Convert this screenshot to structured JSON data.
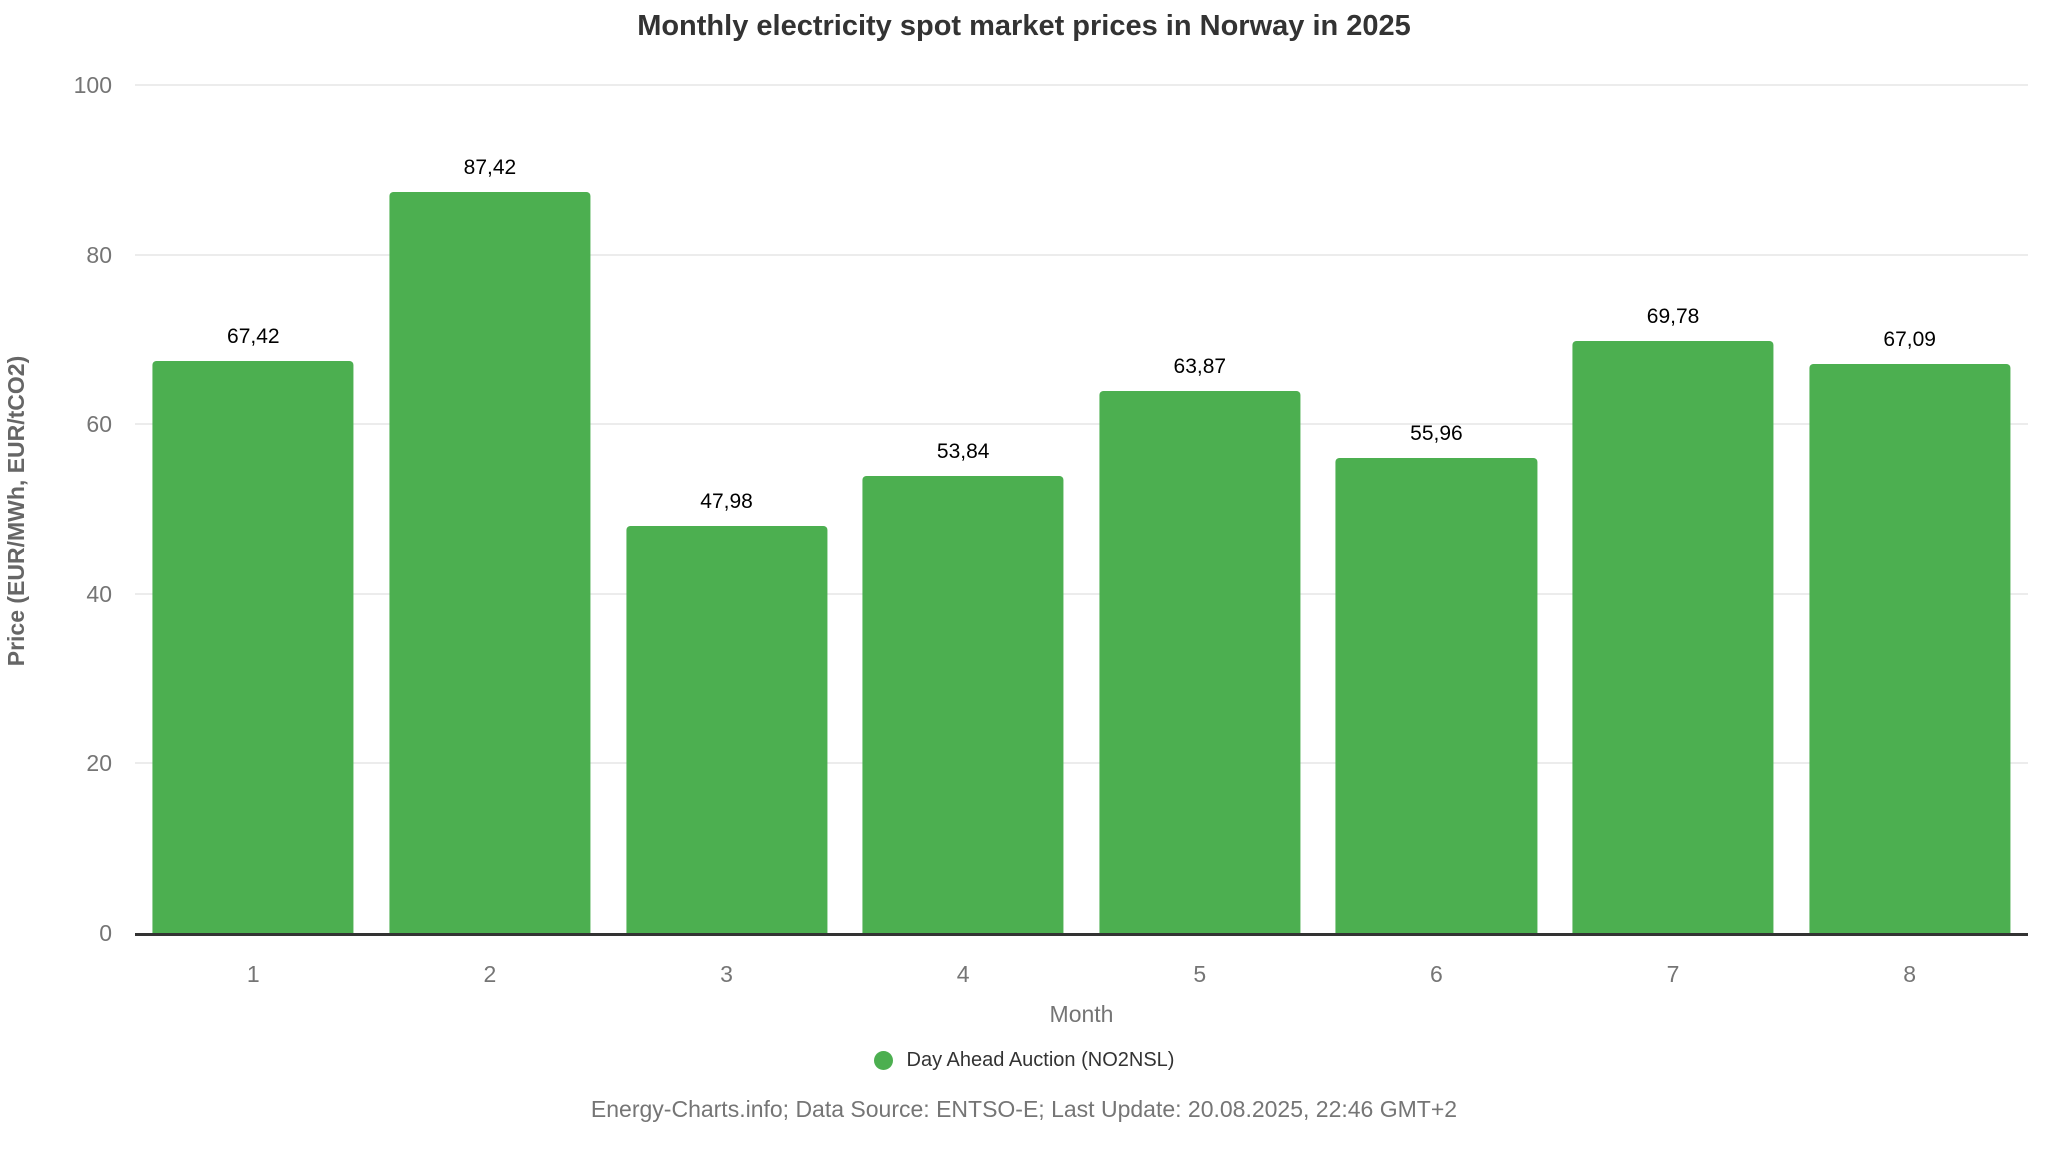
{
  "title": "Monthly electricity spot market prices in Norway in 2025",
  "chart_data": {
    "type": "bar",
    "title": "Monthly electricity spot market prices in Norway in 2025",
    "categories": [
      "1",
      "2",
      "3",
      "4",
      "5",
      "6",
      "7",
      "8"
    ],
    "values": [
      67.42,
      87.42,
      47.98,
      53.84,
      63.87,
      55.96,
      69.78,
      67.09
    ],
    "value_labels": [
      "67,42",
      "87,42",
      "47,98",
      "53,84",
      "63,87",
      "55,96",
      "69,78",
      "67,09"
    ],
    "series": [
      {
        "name": "Day Ahead Auction (NO2NSL)",
        "values": [
          67.42,
          87.42,
          47.98,
          53.84,
          63.87,
          55.96,
          69.78,
          67.09
        ],
        "color": "#4caf50"
      }
    ],
    "xlabel": "Month",
    "ylabel": "Price (EUR/MWh, EUR/tCO2)",
    "ylim": [
      0,
      100
    ],
    "y_ticks": [
      0,
      20,
      40,
      60,
      80,
      100
    ],
    "grid": "horizontal",
    "legend_position": "bottom"
  },
  "legend": {
    "items": [
      {
        "label": "Day Ahead Auction (NO2NSL)",
        "color": "#4caf50",
        "marker": "circle-icon"
      }
    ]
  },
  "footer": {
    "text": "Energy-Charts.info; Data Source: ENTSO-E; Last Update: 20.08.2025, 22:46 GMT+2"
  },
  "colors": {
    "bar": "#4caf50",
    "title": "#333333",
    "tick_label": "#757575",
    "axis_title": "#666666",
    "gridline": "#ececec",
    "baseline": "#333333",
    "value_label": "#000000"
  }
}
